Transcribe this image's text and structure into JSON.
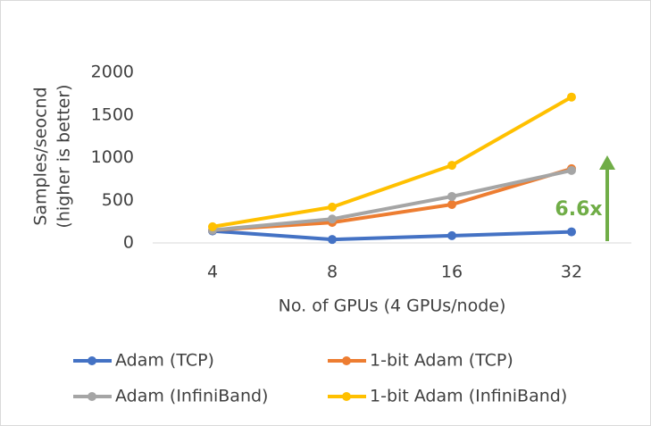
{
  "chart_data": {
    "type": "line",
    "categories": [
      "4",
      "8",
      "16",
      "32"
    ],
    "series": [
      {
        "name": "Adam (TCP)",
        "color": "#4472c4",
        "values": [
          140,
          40,
          85,
          130
        ]
      },
      {
        "name": "1-bit Adam (TCP)",
        "color": "#ed7d31",
        "values": [
          150,
          240,
          450,
          870
        ]
      },
      {
        "name": "Adam (InfiniBand)",
        "color": "#a5a5a5",
        "values": [
          150,
          280,
          545,
          850
        ]
      },
      {
        "name": "1-bit Adam (InfiniBand)",
        "color": "#ffc000",
        "values": [
          190,
          420,
          910,
          1710
        ]
      }
    ],
    "ylim": [
      0,
      2000
    ],
    "yticks": [
      0,
      500,
      1000,
      1500,
      2000
    ],
    "ylabel": [
      "Samples/seocnd",
      "(higher is better)"
    ],
    "xlabel": "No. of GPUs (4 GPUs/node)",
    "annotation": "6.6x",
    "legend": "bottom"
  }
}
